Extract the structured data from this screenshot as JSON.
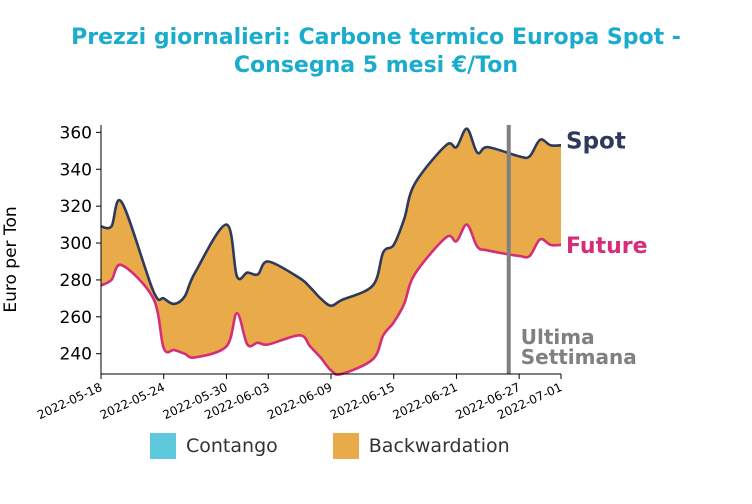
{
  "title_lines": [
    "Prezzi giornalieri: Carbone termico Europa Spot -",
    "Consegna 5 mesi €/Ton"
  ],
  "colors": {
    "title": "#1aaccc",
    "spot": "#2d3a5c",
    "future": "#d62d78",
    "backwardation": "#e9ab4a",
    "contango": "#5ec8dc",
    "marker": "#808080"
  },
  "legend": [
    {
      "label": "Contango",
      "color": "#5ec8dc"
    },
    {
      "label": "Backwardation",
      "color": "#e9ab4a"
    }
  ],
  "chart_data": {
    "type": "area",
    "title": "Prezzi giornalieri: Carbone termico Europa Spot - Consegna 5 mesi €/Ton",
    "xlabel": "",
    "ylabel": "Euro per Ton",
    "ylim": [
      229,
      364
    ],
    "yticks": [
      240,
      260,
      280,
      300,
      320,
      340,
      360
    ],
    "xlim": [
      "2022-05-18",
      "2022-07-01"
    ],
    "xticks": [
      "2022-05-18",
      "2022-05-24",
      "2022-05-30",
      "2022-06-03",
      "2022-06-09",
      "2022-06-15",
      "2022-06-21",
      "2022-06-27",
      "2022-07-01"
    ],
    "grid": false,
    "x": [
      "2022-05-18",
      "2022-05-19",
      "2022-05-20",
      "2022-05-23",
      "2022-05-24",
      "2022-05-25",
      "2022-05-26",
      "2022-05-27",
      "2022-05-30",
      "2022-05-31",
      "2022-06-01",
      "2022-06-02",
      "2022-06-03",
      "2022-06-06",
      "2022-06-07",
      "2022-06-08",
      "2022-06-09",
      "2022-06-10",
      "2022-06-13",
      "2022-06-14",
      "2022-06-15",
      "2022-06-16",
      "2022-06-17",
      "2022-06-20",
      "2022-06-21",
      "2022-06-22",
      "2022-06-23",
      "2022-06-24",
      "2022-06-27",
      "2022-06-28",
      "2022-06-29",
      "2022-06-30",
      "2022-07-01"
    ],
    "series": [
      {
        "name": "Spot",
        "values": [
          309,
          309,
          322,
          274,
          270,
          267,
          271,
          284,
          310,
          282,
          284,
          283,
          290,
          281,
          276,
          270,
          266,
          269,
          277,
          295,
          299,
          313,
          332,
          353,
          352,
          362,
          349,
          352,
          347,
          347,
          356,
          353,
          353
        ]
      },
      {
        "name": "Future",
        "values": [
          277,
          280,
          288,
          270,
          243,
          242,
          240,
          238,
          244,
          262,
          245,
          246,
          245,
          250,
          244,
          238,
          231,
          229,
          237,
          250,
          257,
          267,
          283,
          303,
          301,
          310,
          298,
          296,
          293,
          293,
          302,
          299,
          299
        ]
      }
    ],
    "annotations": [
      {
        "text": "Spot",
        "series": "Spot"
      },
      {
        "text": "Future",
        "series": "Future"
      },
      {
        "text": "Ultima Settimana",
        "at": "2022-06-26",
        "type": "vertical-line"
      }
    ],
    "marker_label_lines": [
      "Ultima",
      "Settimana"
    ]
  }
}
